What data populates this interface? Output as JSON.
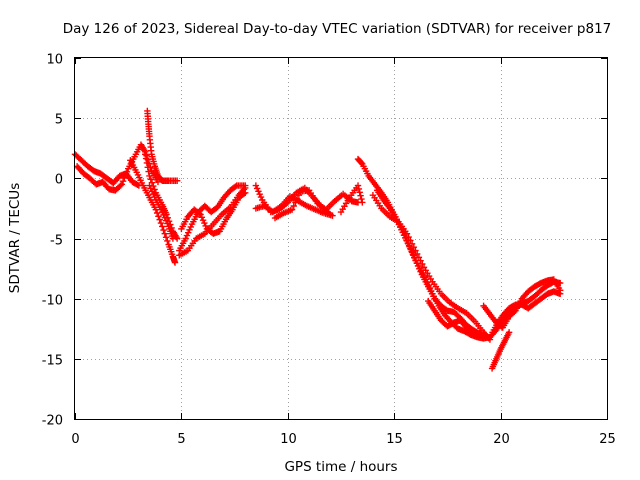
{
  "chart_data": {
    "type": "scatter",
    "title": "Day 126 of 2023, Sidereal Day-to-day VTEC variation (SDTVAR) for receiver p817",
    "xlabel": "GPS time / hours",
    "ylabel": "SDTVAR / TECUs",
    "xlim": [
      0,
      25
    ],
    "ylim": [
      -20,
      10
    ],
    "grid": true,
    "marker": "plus",
    "xticks": [
      0,
      5,
      10,
      15,
      20,
      25
    ],
    "xtick_labels": [
      "0",
      "5",
      "10",
      "15",
      "20",
      "25"
    ],
    "yticks": [
      -20,
      -15,
      -10,
      -5,
      0,
      5,
      10
    ],
    "ytick_labels": [
      "-20",
      "-15",
      "-10",
      "-5",
      "0",
      "5",
      "10"
    ],
    "color": "#ff0000",
    "series": [
      {
        "name": "s1",
        "points": [
          [
            0.0,
            2.0
          ],
          [
            0.3,
            1.5
          ],
          [
            0.6,
            1.0
          ],
          [
            0.9,
            0.6
          ],
          [
            1.2,
            0.4
          ],
          [
            1.5,
            0.0
          ],
          [
            1.8,
            -0.4
          ],
          [
            2.1,
            0.2
          ],
          [
            2.4,
            0.4
          ],
          [
            2.7,
            -0.3
          ],
          [
            3.0,
            -0.6
          ]
        ]
      },
      {
        "name": "s2",
        "points": [
          [
            0.1,
            1.0
          ],
          [
            0.4,
            0.4
          ],
          [
            0.7,
            0.0
          ],
          [
            1.0,
            -0.5
          ],
          [
            1.3,
            -0.3
          ],
          [
            1.6,
            -0.9
          ],
          [
            1.9,
            -1.0
          ],
          [
            2.2,
            -0.5
          ],
          [
            2.5,
            0.8
          ],
          [
            2.8,
            1.8
          ],
          [
            3.1,
            2.8
          ],
          [
            3.3,
            2.2
          ],
          [
            3.6,
            0.6
          ],
          [
            3.9,
            -0.3
          ]
        ]
      },
      {
        "name": "s3",
        "points": [
          [
            2.6,
            1.5
          ],
          [
            2.9,
            0.5
          ],
          [
            3.2,
            -0.6
          ],
          [
            3.5,
            -1.6
          ],
          [
            3.8,
            -2.6
          ],
          [
            4.1,
            -4.0
          ],
          [
            4.4,
            -5.5
          ],
          [
            4.6,
            -6.5
          ],
          [
            4.7,
            -7.0
          ]
        ]
      },
      {
        "name": "s4",
        "points": [
          [
            3.3,
            2.0
          ],
          [
            3.5,
            0.2
          ],
          [
            3.8,
            -1.2
          ],
          [
            4.1,
            -2.2
          ],
          [
            4.3,
            -3.0
          ],
          [
            4.6,
            -4.4
          ],
          [
            4.8,
            -5.0
          ]
        ]
      },
      {
        "name": "s5",
        "points": [
          [
            3.4,
            5.6
          ],
          [
            3.45,
            4.5
          ],
          [
            3.5,
            3.5
          ],
          [
            3.6,
            2.0
          ],
          [
            3.75,
            1.0
          ],
          [
            3.9,
            0.2
          ],
          [
            4.1,
            -0.2
          ],
          [
            4.4,
            -0.2
          ],
          [
            4.8,
            -0.2
          ]
        ]
      },
      {
        "name": "s6",
        "points": [
          [
            3.5,
            -0.6
          ],
          [
            3.8,
            -1.8
          ],
          [
            4.1,
            -2.8
          ],
          [
            4.4,
            -4.0
          ],
          [
            4.6,
            -5.0
          ]
        ]
      },
      {
        "name": "s7",
        "points": [
          [
            4.9,
            -6.0
          ],
          [
            5.2,
            -5.0
          ],
          [
            5.5,
            -3.8
          ],
          [
            5.8,
            -2.8
          ],
          [
            6.1,
            -2.3
          ],
          [
            6.4,
            -2.8
          ],
          [
            6.7,
            -2.4
          ],
          [
            7.0,
            -1.6
          ],
          [
            7.3,
            -1.0
          ],
          [
            7.6,
            -0.6
          ],
          [
            8.0,
            -0.6
          ]
        ]
      },
      {
        "name": "s8",
        "points": [
          [
            5.0,
            -4.2
          ],
          [
            5.3,
            -3.2
          ],
          [
            5.6,
            -2.6
          ],
          [
            5.9,
            -3.0
          ],
          [
            6.2,
            -4.2
          ],
          [
            6.5,
            -4.6
          ],
          [
            6.8,
            -4.4
          ],
          [
            7.1,
            -3.4
          ],
          [
            7.4,
            -2.6
          ],
          [
            7.7,
            -1.6
          ],
          [
            8.0,
            -1.2
          ]
        ]
      },
      {
        "name": "s9",
        "points": [
          [
            4.9,
            -6.4
          ],
          [
            5.3,
            -6.0
          ],
          [
            5.7,
            -5.0
          ],
          [
            6.1,
            -4.6
          ],
          [
            6.5,
            -3.8
          ],
          [
            6.9,
            -3.0
          ],
          [
            7.3,
            -2.4
          ],
          [
            7.7,
            -1.4
          ],
          [
            8.0,
            -0.8
          ]
        ]
      },
      {
        "name": "s10",
        "points": [
          [
            8.5,
            -0.6
          ],
          [
            8.8,
            -1.8
          ],
          [
            9.2,
            -2.8
          ],
          [
            9.6,
            -2.6
          ],
          [
            10.0,
            -2.0
          ],
          [
            10.4,
            -1.2
          ],
          [
            10.8,
            -0.8
          ],
          [
            11.2,
            -1.6
          ],
          [
            11.6,
            -2.4
          ],
          [
            12.0,
            -3.0
          ]
        ]
      },
      {
        "name": "s11",
        "points": [
          [
            8.5,
            -2.5
          ],
          [
            8.9,
            -2.3
          ],
          [
            9.3,
            -2.8
          ],
          [
            9.7,
            -2.3
          ],
          [
            10.1,
            -1.5
          ],
          [
            10.5,
            -1.9
          ],
          [
            10.9,
            -2.3
          ],
          [
            11.3,
            -2.6
          ],
          [
            11.7,
            -2.9
          ],
          [
            12.1,
            -3.1
          ]
        ]
      },
      {
        "name": "s12",
        "points": [
          [
            9.4,
            -3.3
          ],
          [
            9.8,
            -2.9
          ],
          [
            10.2,
            -2.6
          ],
          [
            10.6,
            -1.1
          ],
          [
            11.0,
            -1.0
          ],
          [
            11.4,
            -2.1
          ],
          [
            11.8,
            -2.6
          ],
          [
            12.2,
            -1.9
          ],
          [
            12.6,
            -1.3
          ],
          [
            13.0,
            -1.9
          ],
          [
            13.3,
            -2.0
          ]
        ]
      },
      {
        "name": "s13",
        "points": [
          [
            12.5,
            -2.8
          ],
          [
            12.9,
            -1.6
          ],
          [
            13.3,
            -0.6
          ],
          [
            13.5,
            -2.0
          ]
        ]
      },
      {
        "name": "s14",
        "points": [
          [
            13.3,
            1.6
          ],
          [
            13.5,
            1.2
          ],
          [
            13.8,
            0.2
          ],
          [
            14.1,
            -0.5
          ],
          [
            14.4,
            -1.2
          ],
          [
            14.7,
            -2.0
          ],
          [
            15.0,
            -3.0
          ],
          [
            15.3,
            -4.0
          ],
          [
            15.6,
            -5.2
          ],
          [
            15.9,
            -6.4
          ],
          [
            16.2,
            -7.5
          ],
          [
            16.5,
            -8.4
          ],
          [
            16.8,
            -9.6
          ],
          [
            17.1,
            -10.6
          ],
          [
            17.4,
            -11.4
          ],
          [
            17.7,
            -12.0
          ],
          [
            18.0,
            -12.5
          ],
          [
            18.3,
            -12.7
          ],
          [
            18.6,
            -13.0
          ],
          [
            18.9,
            -13.2
          ],
          [
            19.2,
            -13.3
          ],
          [
            19.5,
            -13.2
          ],
          [
            19.8,
            -12.6
          ],
          [
            20.1,
            -11.8
          ],
          [
            20.4,
            -11.2
          ],
          [
            20.7,
            -10.8
          ],
          [
            21.0,
            -10.4
          ],
          [
            21.3,
            -10.2
          ],
          [
            21.6,
            -9.8
          ],
          [
            21.9,
            -9.3
          ],
          [
            22.2,
            -8.9
          ],
          [
            22.5,
            -8.6
          ],
          [
            22.8,
            -8.7
          ]
        ]
      },
      {
        "name": "s15",
        "points": [
          [
            14.2,
            -1.0
          ],
          [
            14.5,
            -1.8
          ],
          [
            14.8,
            -2.5
          ],
          [
            15.1,
            -3.4
          ],
          [
            15.4,
            -4.5
          ],
          [
            15.7,
            -5.6
          ],
          [
            16.0,
            -6.8
          ],
          [
            16.3,
            -8.0
          ],
          [
            16.6,
            -9.0
          ],
          [
            16.9,
            -10.0
          ],
          [
            17.2,
            -10.6
          ],
          [
            17.5,
            -11.0
          ],
          [
            17.8,
            -11.1
          ],
          [
            18.1,
            -11.6
          ],
          [
            18.4,
            -12.2
          ],
          [
            18.7,
            -12.6
          ],
          [
            19.0,
            -12.9
          ],
          [
            19.3,
            -13.1
          ]
        ]
      },
      {
        "name": "s16",
        "points": [
          [
            14.0,
            -1.4
          ],
          [
            14.4,
            -2.5
          ],
          [
            14.8,
            -3.2
          ],
          [
            15.2,
            -3.6
          ],
          [
            15.6,
            -4.6
          ],
          [
            16.0,
            -6.0
          ],
          [
            16.4,
            -7.4
          ],
          [
            16.8,
            -8.6
          ],
          [
            17.2,
            -9.6
          ],
          [
            17.6,
            -10.3
          ],
          [
            18.0,
            -10.8
          ],
          [
            18.4,
            -11.2
          ],
          [
            18.8,
            -11.9
          ],
          [
            19.2,
            -12.8
          ],
          [
            19.5,
            -13.4
          ]
        ]
      },
      {
        "name": "s17",
        "points": [
          [
            16.6,
            -10.2
          ],
          [
            16.9,
            -11.0
          ],
          [
            17.2,
            -11.8
          ],
          [
            17.5,
            -12.3
          ],
          [
            17.8,
            -12.0
          ],
          [
            18.1,
            -11.8
          ],
          [
            18.4,
            -12.4
          ],
          [
            18.7,
            -12.8
          ],
          [
            19.0,
            -13.0
          ]
        ]
      },
      {
        "name": "s18",
        "points": [
          [
            19.6,
            -15.8
          ],
          [
            19.8,
            -15.0
          ],
          [
            20.0,
            -14.2
          ],
          [
            20.2,
            -13.5
          ],
          [
            20.4,
            -12.8
          ]
        ]
      },
      {
        "name": "s19",
        "points": [
          [
            19.5,
            -13.2
          ],
          [
            19.8,
            -12.2
          ],
          [
            20.1,
            -11.4
          ],
          [
            20.4,
            -10.8
          ],
          [
            20.7,
            -10.5
          ],
          [
            21.0,
            -10.5
          ],
          [
            21.3,
            -10.8
          ],
          [
            21.6,
            -10.4
          ],
          [
            21.9,
            -10.0
          ],
          [
            22.2,
            -9.6
          ],
          [
            22.5,
            -9.4
          ],
          [
            22.8,
            -9.6
          ]
        ]
      },
      {
        "name": "s20",
        "points": [
          [
            19.2,
            -10.6
          ],
          [
            19.5,
            -11.3
          ],
          [
            19.8,
            -12.0
          ],
          [
            20.1,
            -12.4
          ],
          [
            20.4,
            -11.5
          ],
          [
            20.7,
            -11.0
          ],
          [
            21.0,
            -10.0
          ],
          [
            21.3,
            -9.4
          ],
          [
            21.6,
            -9.0
          ],
          [
            21.9,
            -8.7
          ],
          [
            22.2,
            -8.5
          ],
          [
            22.5,
            -8.4
          ],
          [
            22.8,
            -9.3
          ]
        ]
      }
    ]
  }
}
